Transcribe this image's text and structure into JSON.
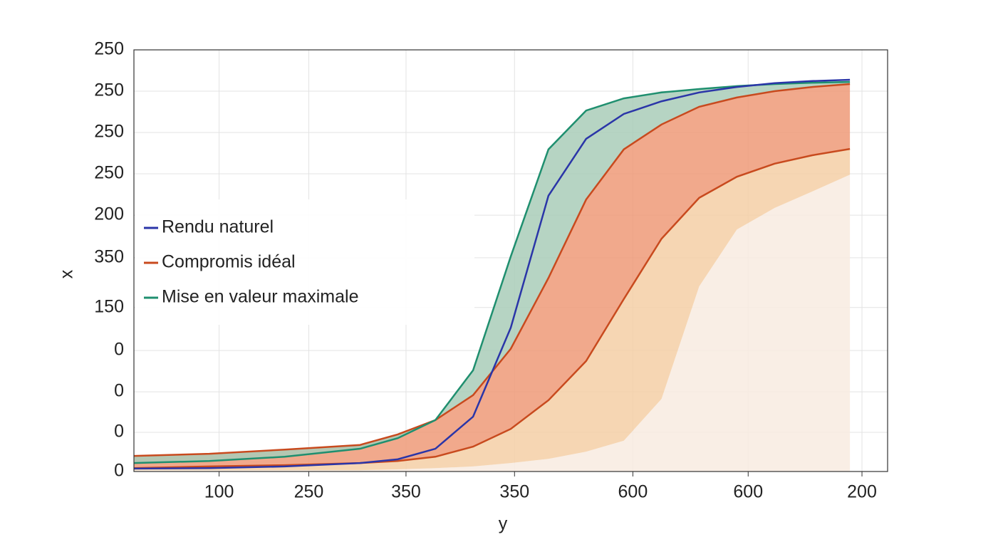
{
  "chart_data": {
    "type": "line",
    "xlabel": "y",
    "ylabel": "x",
    "x": [
      0,
      10,
      20,
      30,
      35,
      40,
      45,
      50,
      55,
      60,
      65,
      70,
      75,
      80,
      85,
      90,
      95
    ],
    "series": [
      {
        "name": "Rendu naturel",
        "color": "#2a35a8",
        "values": [
          0.7,
          0.8,
          1.2,
          2.0,
          2.9,
          5.4,
          13.0,
          34.1,
          65.4,
          78.9,
          84.8,
          87.8,
          89.9,
          91.2,
          92.1,
          92.6,
          92.9
        ]
      },
      {
        "name": "Compromis idéal",
        "color": "#c84a1e",
        "values": [
          3.7,
          4.2,
          5.2,
          6.3,
          8.8,
          12.2,
          18.1,
          29.1,
          45.9,
          64.5,
          76.4,
          82.3,
          86.5,
          88.7,
          90.2,
          91.2,
          91.9
        ]
      },
      {
        "name": "Mise en valeur maximale",
        "color": "#1f8f6f",
        "values": [
          2.0,
          2.5,
          3.5,
          5.4,
          7.9,
          12.2,
          24.0,
          51.0,
          76.4,
          85.6,
          88.5,
          89.9,
          90.7,
          91.4,
          91.9,
          92.2,
          92.4
        ]
      },
      {
        "color": "#c84a1e",
        "values": [
          0.8,
          1.2,
          1.5,
          2.0,
          2.5,
          3.5,
          5.9,
          10.1,
          16.9,
          26.2,
          40.9,
          55.2,
          64.9,
          69.9,
          73.0,
          75.0,
          76.5
        ]
      },
      {
        "color": "#f3d4b0",
        "line": false,
        "values": [
          0.3,
          0.3,
          0.3,
          0.3,
          0.5,
          0.8,
          1.2,
          2.0,
          3.0,
          4.7,
          7.3,
          17.2,
          43.9,
          57.4,
          62.5,
          66.4,
          70.4
        ]
      }
    ],
    "fills": [
      {
        "color": "#f8ebe0",
        "between": [
          4
        ]
      },
      {
        "color": "#f5cfa6",
        "between": [
          3,
          4
        ]
      },
      {
        "color": "#ee9a78",
        "between": [
          1,
          3
        ]
      },
      {
        "color": "#a9cdb9",
        "between": [
          2,
          1
        ]
      }
    ],
    "xlim": [
      0,
      100
    ],
    "ylim": [
      0,
      100
    ],
    "xticks": [
      {
        "value": 11.3,
        "label": "100"
      },
      {
        "value": 23.2,
        "label": "250"
      },
      {
        "value": 36.1,
        "label": "350"
      },
      {
        "value": 50.5,
        "label": "350"
      },
      {
        "value": 66.2,
        "label": "600"
      },
      {
        "value": 81.5,
        "label": "600"
      },
      {
        "value": 96.6,
        "label": "200"
      }
    ],
    "yticks": [
      0,
      {
        "value": 9.3,
        "label": "0"
      },
      {
        "value": 18.9,
        "label": "0"
      },
      {
        "value": 28.7,
        "label": "0"
      },
      {
        "value": 38.9,
        "label": "150"
      },
      {
        "value": 50.7,
        "label": "350"
      },
      {
        "value": 60.8,
        "label": "200"
      },
      {
        "value": 70.6,
        "label": "250"
      },
      {
        "value": 80.4,
        "label": "250"
      },
      {
        "value": 90.2,
        "label": "250"
      },
      {
        "value": 100,
        "label": "250"
      }
    ],
    "grid": true,
    "legend": "center left"
  }
}
